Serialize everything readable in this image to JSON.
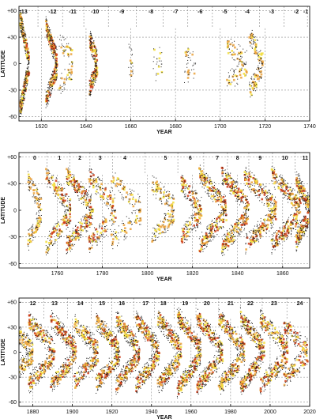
{
  "chart_data": [
    {
      "type": "scatter",
      "title": "",
      "xlabel": "YEAR",
      "ylabel": "LATITUDE",
      "xlim": [
        1610,
        1740
      ],
      "ylim": [
        -65,
        65
      ],
      "x_ticks": [
        1620,
        1640,
        1660,
        1680,
        1700,
        1720,
        1740
      ],
      "y_ticks": [
        -60,
        -30,
        0,
        30,
        60
      ],
      "y_tick_labels": [
        "-60",
        "-30",
        "0",
        "+30",
        "+60"
      ],
      "grid": true,
      "cycles": [
        {
          "label": "-13",
          "x": 1612
        },
        {
          "label": "-12",
          "x": 1625
        },
        {
          "label": "-11",
          "x": 1634
        },
        {
          "label": "-10",
          "x": 1644
        },
        {
          "label": "-9",
          "x": 1656
        },
        {
          "label": "-8",
          "x": 1669
        },
        {
          "label": "-7",
          "x": 1680
        },
        {
          "label": "-6",
          "x": 1691
        },
        {
          "label": "-5",
          "x": 1702
        },
        {
          "label": "-4",
          "x": 1712
        },
        {
          "label": "-3",
          "x": 1723
        },
        {
          "label": "-2",
          "x": 1734
        },
        {
          "label": "-1",
          "x": 1744
        }
      ],
      "sunspot_groups": [
        {
          "x0": 1610.5,
          "x1": 1614.5,
          "lat_hi": 52,
          "lat_lo": 4,
          "density": 1.0
        },
        {
          "x0": 1622,
          "x1": 1627,
          "lat_hi": 42,
          "lat_lo": 5,
          "density": 0.9
        },
        {
          "x0": 1628,
          "x1": 1634,
          "lat_hi": 25,
          "lat_lo": 8,
          "density": 0.2
        },
        {
          "x0": 1641.5,
          "x1": 1645,
          "lat_hi": 28,
          "lat_lo": 4,
          "density": 0.6
        },
        {
          "x0": 1659,
          "x1": 1661,
          "lat_hi": 12,
          "lat_lo": 5,
          "density": 0.03
        },
        {
          "x0": 1670,
          "x1": 1674,
          "lat_hi": 14,
          "lat_lo": 5,
          "density": 0.04
        },
        {
          "x0": 1684,
          "x1": 1689,
          "lat_hi": 12,
          "lat_lo": 4,
          "density": 0.08
        },
        {
          "x0": 1703,
          "x1": 1712,
          "lat_hi": 20,
          "lat_lo": 4,
          "density": 0.3
        },
        {
          "x0": 1713,
          "x1": 1719,
          "lat_hi": 32,
          "lat_lo": 4,
          "density": 0.4
        }
      ]
    },
    {
      "type": "scatter",
      "title": "",
      "xlabel": "YEAR",
      "ylabel": "LATITUDE",
      "xlim": [
        1743,
        1872
      ],
      "ylim": [
        -65,
        65
      ],
      "x_ticks": [
        1760,
        1780,
        1800,
        1820,
        1840,
        1860
      ],
      "y_ticks": [
        -60,
        -30,
        0,
        30,
        60
      ],
      "y_tick_labels": [
        "-60",
        "-30",
        "0",
        "+30",
        "+60"
      ],
      "grid": true,
      "cycles": [
        {
          "label": "0",
          "x": 1750
        },
        {
          "label": "1",
          "x": 1761
        },
        {
          "label": "2",
          "x": 1770
        },
        {
          "label": "3",
          "x": 1779
        },
        {
          "label": "4",
          "x": 1790
        },
        {
          "label": "5",
          "x": 1808
        },
        {
          "label": "6",
          "x": 1819
        },
        {
          "label": "7",
          "x": 1831
        },
        {
          "label": "8",
          "x": 1840
        },
        {
          "label": "9",
          "x": 1850
        },
        {
          "label": "10",
          "x": 1861
        },
        {
          "label": "11",
          "x": 1870
        }
      ],
      "sunspot_groups": [
        {
          "x0": 1747,
          "x1": 1753,
          "lat_hi": 35,
          "lat_lo": 4,
          "density": 0.4
        },
        {
          "x0": 1755,
          "x1": 1766,
          "lat_hi": 40,
          "lat_lo": 4,
          "density": 0.7
        },
        {
          "x0": 1764,
          "x1": 1776,
          "lat_hi": 40,
          "lat_lo": 4,
          "density": 0.9
        },
        {
          "x0": 1774,
          "x1": 1786,
          "lat_hi": 38,
          "lat_lo": 4,
          "density": 0.6
        },
        {
          "x0": 1784,
          "x1": 1797,
          "lat_hi": 35,
          "lat_lo": 4,
          "density": 0.4
        },
        {
          "x0": 1802,
          "x1": 1812,
          "lat_hi": 30,
          "lat_lo": 4,
          "density": 0.5
        },
        {
          "x0": 1815,
          "x1": 1824,
          "lat_hi": 30,
          "lat_lo": 4,
          "density": 0.6
        },
        {
          "x0": 1823,
          "x1": 1835,
          "lat_hi": 40,
          "lat_lo": 4,
          "density": 1.0
        },
        {
          "x0": 1833,
          "x1": 1845,
          "lat_hi": 42,
          "lat_lo": 4,
          "density": 1.0
        },
        {
          "x0": 1843,
          "x1": 1857,
          "lat_hi": 40,
          "lat_lo": 4,
          "density": 1.0
        },
        {
          "x0": 1855,
          "x1": 1868,
          "lat_hi": 40,
          "lat_lo": 4,
          "density": 1.0
        },
        {
          "x0": 1866,
          "x1": 1872,
          "lat_hi": 35,
          "lat_lo": 4,
          "density": 0.8
        }
      ]
    },
    {
      "type": "scatter",
      "title": "",
      "xlabel": "YEAR",
      "ylabel": "LATITUDE",
      "xlim": [
        1873,
        2020
      ],
      "ylim": [
        -65,
        65
      ],
      "x_ticks": [
        1880,
        1900,
        1920,
        1940,
        1960,
        1980,
        2000,
        2020
      ],
      "y_ticks": [
        -60,
        -30,
        0,
        30,
        60
      ],
      "y_tick_labels": [
        "-60",
        "-30",
        "0",
        "+30",
        "+60"
      ],
      "grid": true,
      "cycles": [
        {
          "label": "12",
          "x": 1880
        },
        {
          "label": "13",
          "x": 1891
        },
        {
          "label": "14",
          "x": 1904
        },
        {
          "label": "15",
          "x": 1915
        },
        {
          "label": "16",
          "x": 1925
        },
        {
          "label": "17",
          "x": 1937
        },
        {
          "label": "18",
          "x": 1946
        },
        {
          "label": "19",
          "x": 1957
        },
        {
          "label": "20",
          "x": 1968
        },
        {
          "label": "21",
          "x": 1980
        },
        {
          "label": "22",
          "x": 1990
        },
        {
          "label": "23",
          "x": 2002
        },
        {
          "label": "24",
          "x": 2015
        }
      ],
      "sunspot_groups": [
        {
          "x0": 1873,
          "x1": 1880,
          "lat_hi": 20,
          "lat_lo": 4,
          "density": 0.5
        },
        {
          "x0": 1878,
          "x1": 1891,
          "lat_hi": 38,
          "lat_lo": 4,
          "density": 0.9
        },
        {
          "x0": 1889,
          "x1": 1902,
          "lat_hi": 40,
          "lat_lo": 4,
          "density": 0.9
        },
        {
          "x0": 1901,
          "x1": 1913,
          "lat_hi": 36,
          "lat_lo": 4,
          "density": 0.8
        },
        {
          "x0": 1912,
          "x1": 1924,
          "lat_hi": 38,
          "lat_lo": 4,
          "density": 0.9
        },
        {
          "x0": 1922,
          "x1": 1934,
          "lat_hi": 40,
          "lat_lo": 4,
          "density": 1.0
        },
        {
          "x0": 1932,
          "x1": 1944,
          "lat_hi": 40,
          "lat_lo": 4,
          "density": 1.0
        },
        {
          "x0": 1943,
          "x1": 1955,
          "lat_hi": 42,
          "lat_lo": 4,
          "density": 1.0
        },
        {
          "x0": 1953,
          "x1": 1965,
          "lat_hi": 45,
          "lat_lo": 4,
          "density": 1.0
        },
        {
          "x0": 1963,
          "x1": 1976,
          "lat_hi": 42,
          "lat_lo": 4,
          "density": 1.0
        },
        {
          "x0": 1974,
          "x1": 1987,
          "lat_hi": 42,
          "lat_lo": 4,
          "density": 1.0
        },
        {
          "x0": 1985,
          "x1": 1997,
          "lat_hi": 42,
          "lat_lo": 4,
          "density": 1.0
        },
        {
          "x0": 1995,
          "x1": 2009,
          "lat_hi": 40,
          "lat_lo": 4,
          "density": 0.9
        },
        {
          "x0": 2007,
          "x1": 2019,
          "lat_hi": 32,
          "lat_lo": 4,
          "density": 0.6
        }
      ]
    }
  ],
  "colors": {
    "dot": "#1a1a1a",
    "low_density": "#f2dd3a",
    "mid_density": "#eaa13a",
    "high_density": "#cc3a14",
    "grid": "#8a8a8a",
    "frame": "#111111"
  }
}
